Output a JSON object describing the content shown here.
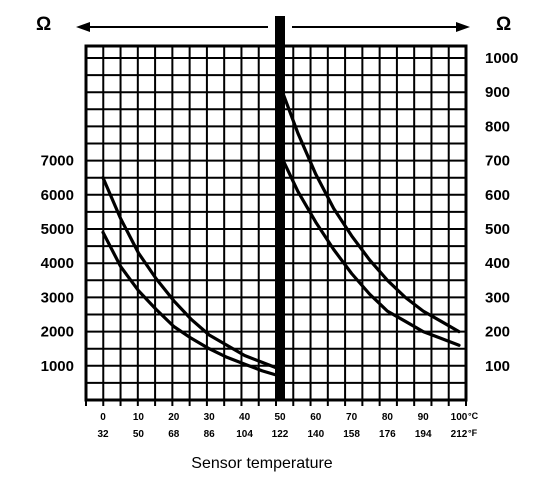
{
  "chart_data": {
    "type": "line",
    "xlabel": "Sensor temperature",
    "left_axis": {
      "unit_label": "Ω",
      "ticks": [
        "7000",
        "6000",
        "5000",
        "4000",
        "3000",
        "2000",
        "1000"
      ],
      "ylim": [
        0,
        7000
      ],
      "x_range_celsius": [
        0,
        50
      ]
    },
    "right_axis": {
      "unit_label": "Ω",
      "ticks": [
        "1000",
        "900",
        "800",
        "700",
        "600",
        "500",
        "400",
        "300",
        "200",
        "100"
      ],
      "ylim": [
        0,
        1000
      ],
      "x_range_celsius": [
        50,
        100
      ]
    },
    "x_ticks_celsius": [
      "0",
      "10",
      "20",
      "30",
      "40",
      "50",
      "60",
      "70",
      "80",
      "90",
      "100"
    ],
    "x_ticks_fahrenheit": [
      "32",
      "50",
      "68",
      "86",
      "104",
      "122",
      "140",
      "158",
      "176",
      "194",
      "212"
    ],
    "x_unit_celsius": "°C",
    "x_unit_fahrenheit": "°F",
    "grid": true,
    "series": [
      {
        "axis": "left",
        "x": [
          0,
          5,
          10,
          15,
          20,
          25,
          30,
          35,
          40,
          45,
          50
        ],
        "values": [
          6500,
          5300,
          4300,
          3550,
          2900,
          2350,
          1900,
          1600,
          1300,
          1100,
          900
        ]
      },
      {
        "axis": "left",
        "x": [
          0,
          5,
          10,
          15,
          20,
          25,
          30,
          35,
          40,
          45,
          50
        ],
        "values": [
          4900,
          3900,
          3200,
          2650,
          2150,
          1800,
          1500,
          1250,
          1050,
          850,
          700
        ]
      },
      {
        "axis": "right",
        "x": [
          50,
          55,
          60,
          65,
          70,
          75,
          80,
          85,
          90,
          95,
          100
        ],
        "values": [
          920,
          780,
          660,
          560,
          480,
          410,
          350,
          300,
          260,
          230,
          200
        ]
      },
      {
        "axis": "right",
        "x": [
          50,
          55,
          60,
          65,
          70,
          75,
          80,
          85,
          90,
          95,
          100
        ],
        "values": [
          720,
          610,
          520,
          440,
          370,
          310,
          260,
          230,
          200,
          180,
          160
        ]
      }
    ]
  }
}
